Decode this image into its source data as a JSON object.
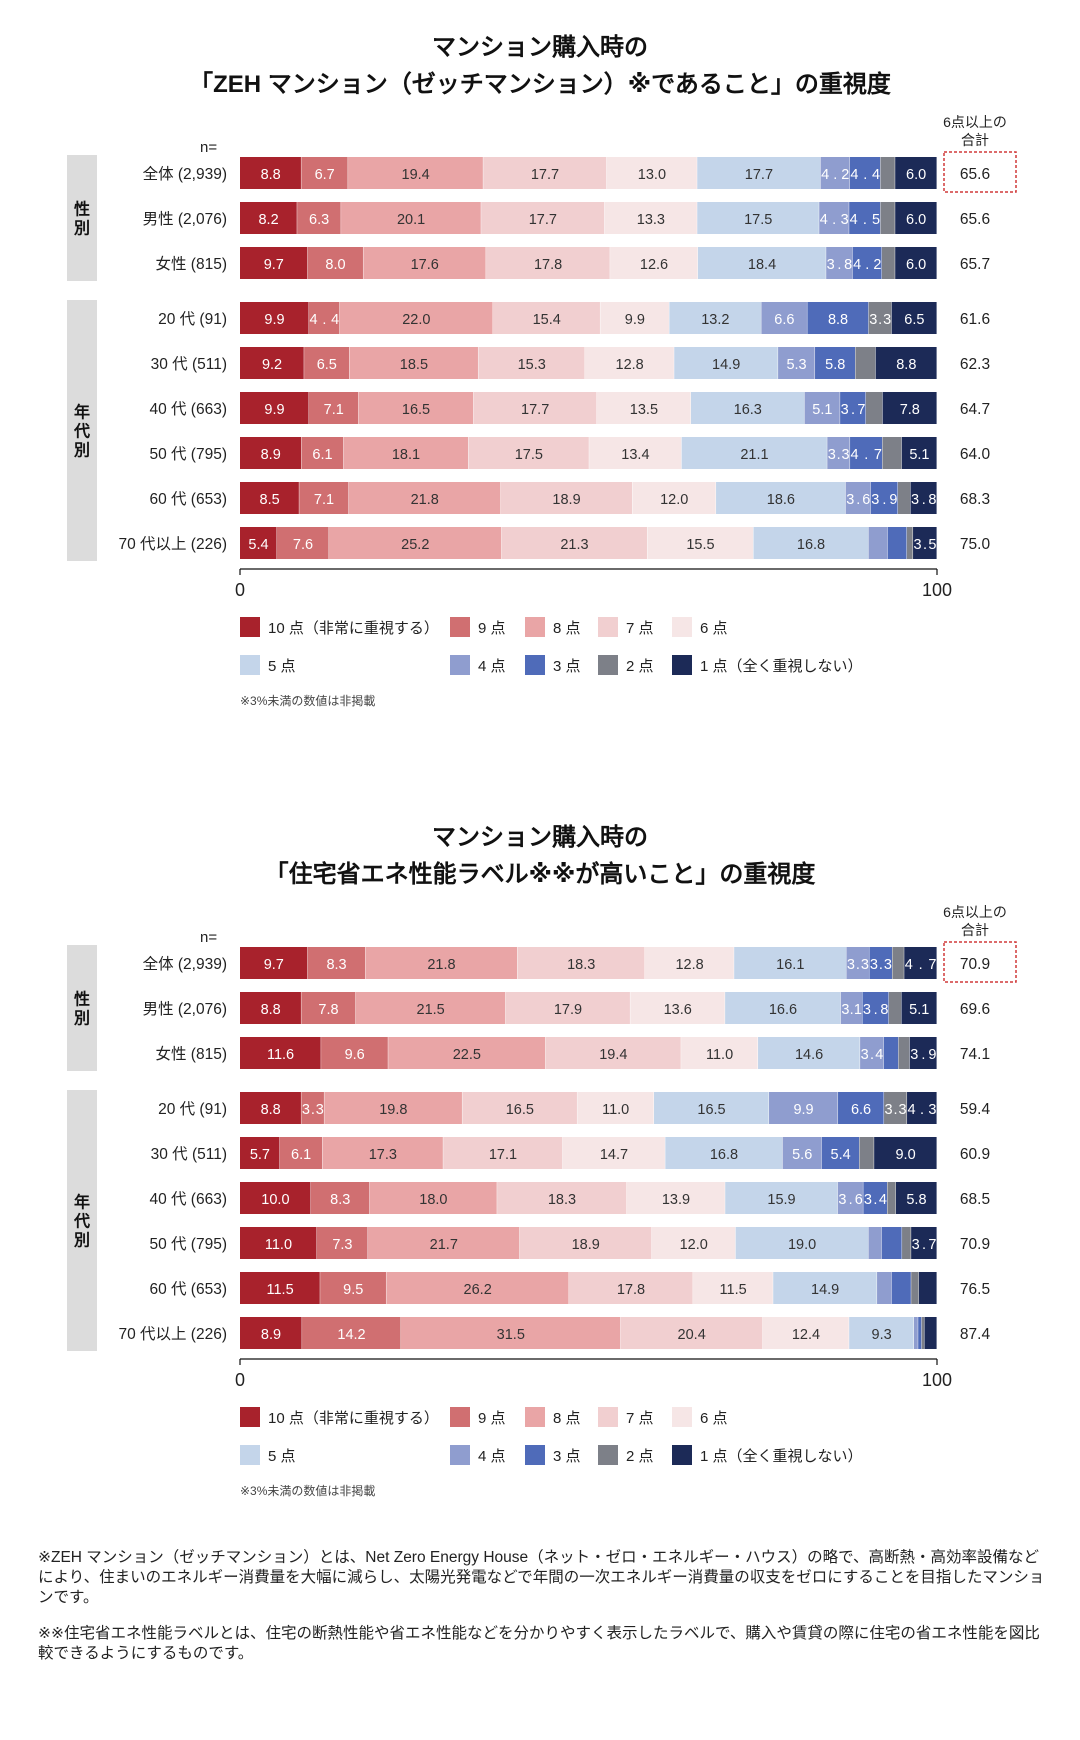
{
  "colors": [
    "#a8222c",
    "#d06f71",
    "#e9a5a6",
    "#f1cfd0",
    "#f6e6e6",
    "#c4d5ea",
    "#8f9dcf",
    "#4f6bb9",
    "#7d8088",
    "#1c2a57"
  ],
  "chart_data": [
    {
      "type": "bar",
      "orientation": "horizontal",
      "stacked": true,
      "title_line1": "マンション購入時の",
      "title_line2": "「ZEH マンション（ゼッチマンション）※であること」の重視度",
      "n_label": "n=",
      "total_header": [
        "6点以上の",
        "合計"
      ],
      "xlim": [
        0,
        100
      ],
      "x_ticks": [
        "0",
        "100"
      ],
      "groups": [
        {
          "label": "性別",
          "start": 0,
          "end": 2
        },
        {
          "label": "年代別",
          "start": 3,
          "end": 8
        }
      ],
      "categories": [
        "全体 (2,939)",
        "男性 (2,076)",
        "女性 (815)",
        "20 代 (91)",
        "30 代 (511)",
        "40 代 (663)",
        "50 代 (795)",
        "60 代 (653)",
        "70 代以上 (226)"
      ],
      "rows": [
        [
          8.8,
          6.7,
          19.4,
          17.7,
          13.0,
          17.7,
          4.2,
          4.4,
          2.1,
          6.0
        ],
        [
          8.2,
          6.3,
          20.1,
          17.7,
          13.3,
          17.5,
          4.3,
          4.5,
          2.1,
          6.0
        ],
        [
          9.7,
          8.0,
          17.6,
          17.8,
          12.6,
          18.4,
          3.8,
          4.2,
          1.9,
          6.0
        ],
        [
          9.9,
          4.4,
          22.0,
          15.4,
          9.9,
          13.2,
          6.6,
          8.8,
          3.3,
          6.5
        ],
        [
          9.2,
          6.5,
          18.5,
          15.3,
          12.8,
          14.9,
          5.3,
          5.8,
          2.9,
          8.8
        ],
        [
          9.9,
          7.1,
          16.5,
          17.7,
          13.5,
          16.3,
          5.1,
          3.7,
          2.4,
          7.8
        ],
        [
          8.9,
          6.1,
          18.1,
          17.5,
          13.4,
          21.1,
          3.3,
          4.7,
          2.8,
          5.1
        ],
        [
          8.5,
          7.1,
          21.8,
          18.9,
          12.0,
          18.6,
          3.6,
          3.9,
          1.8,
          3.8
        ],
        [
          5.4,
          7.6,
          25.2,
          21.3,
          15.5,
          16.8,
          2.8,
          2.8,
          0.9,
          3.5
        ]
      ],
      "totals": [
        "65.6",
        "65.6",
        "65.7",
        "61.6",
        "62.3",
        "64.7",
        "64.0",
        "68.3",
        "75.0"
      ],
      "legend_row1": [
        "10 点（非常に重視する）",
        "9 点",
        "8 点",
        "7 点",
        "6 点"
      ],
      "legend_row2": [
        "5 点",
        "4 点",
        "3 点",
        "2 点",
        "1 点（全く重視しない）"
      ],
      "note": "※3%未満の数値は非掲載"
    },
    {
      "type": "bar",
      "orientation": "horizontal",
      "stacked": true,
      "title_line1": "マンション購入時の",
      "title_line2": "「住宅省エネ性能ラベル※※が高いこと」の重視度",
      "n_label": "n=",
      "total_header": [
        "6点以上の",
        "合計"
      ],
      "xlim": [
        0,
        100
      ],
      "x_ticks": [
        "0",
        "100"
      ],
      "groups": [
        {
          "label": "性別",
          "start": 0,
          "end": 2
        },
        {
          "label": "年代別",
          "start": 3,
          "end": 8
        }
      ],
      "categories": [
        "全体 (2,939)",
        "男性 (2,076)",
        "女性 (815)",
        "20 代 (91)",
        "30 代 (511)",
        "40 代 (663)",
        "50 代 (795)",
        "60 代 (653)",
        "70 代以上 (226)"
      ],
      "rows": [
        [
          9.7,
          8.3,
          21.8,
          18.3,
          12.8,
          16.1,
          3.3,
          3.3,
          1.7,
          4.7
        ],
        [
          8.8,
          7.8,
          21.5,
          17.9,
          13.6,
          16.6,
          3.1,
          3.8,
          1.8,
          5.1
        ],
        [
          11.6,
          9.6,
          22.5,
          19.4,
          11.0,
          14.6,
          3.4,
          2.1,
          1.6,
          3.9
        ],
        [
          8.8,
          3.3,
          19.8,
          16.5,
          11.0,
          16.5,
          9.9,
          6.6,
          3.3,
          4.3
        ],
        [
          5.7,
          6.1,
          17.3,
          17.1,
          14.7,
          16.8,
          5.6,
          5.4,
          2.1,
          9.0
        ],
        [
          10.0,
          8.3,
          18.0,
          18.3,
          13.9,
          15.9,
          3.6,
          3.4,
          1.2,
          5.8
        ],
        [
          11.0,
          7.3,
          21.7,
          18.9,
          12.0,
          19.0,
          1.9,
          2.9,
          1.3,
          3.7
        ],
        [
          11.5,
          9.5,
          26.2,
          17.8,
          11.5,
          14.9,
          2.1,
          2.8,
          1.1,
          2.6
        ],
        [
          8.9,
          14.2,
          31.5,
          20.4,
          12.4,
          9.3,
          0.6,
          0.5,
          0.4,
          1.8
        ]
      ],
      "totals": [
        "70.9",
        "69.6",
        "74.1",
        "59.4",
        "60.9",
        "68.5",
        "70.9",
        "76.5",
        "87.4"
      ],
      "legend_row1": [
        "10 点（非常に重視する）",
        "9 点",
        "8 点",
        "7 点",
        "6 点"
      ],
      "legend_row2": [
        "5 点",
        "4 点",
        "3 点",
        "2 点",
        "1 点（全く重視しない）"
      ],
      "note": "※3%未満の数値は非掲載"
    }
  ],
  "footnotes": {
    "zeh": "※ZEH マンション（ゼッチマンション）とは、Net Zero Energy House（ネット・ゼロ・エネルギー・ハウス）の略で、高断熱・高効率設備などにより、住まいのエネルギー消費量を大幅に減らし、太陽光発電などで年間の一次エネルギー消費量の収支をゼロにすることを目指したマンションです。",
    "label": "※※住宅省エネ性能ラベルとは、住宅の断熱性能や省エネ性能などを分かりやすく表示したラベルで、購入や賃貸の際に住宅の省エネ性能を図比較できるようにするものです。"
  }
}
